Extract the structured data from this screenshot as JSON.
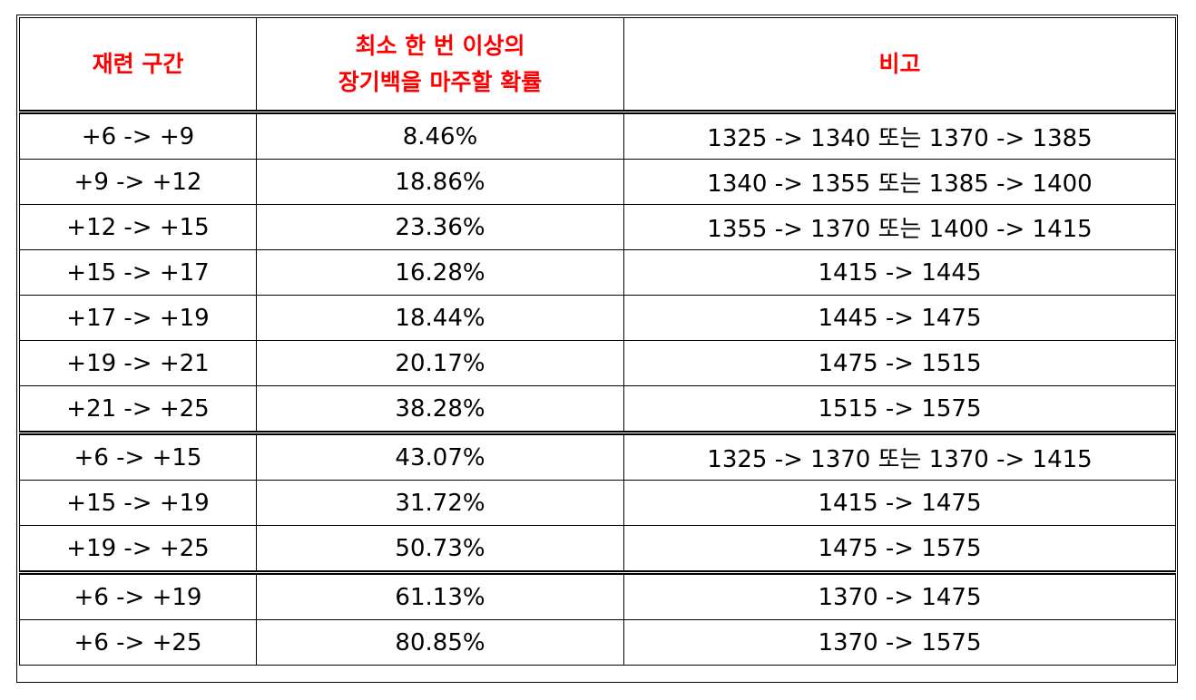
{
  "table": {
    "headers": [
      "재련 구간",
      "최소 한 번 이상의\n장기백을 마주할 확률",
      "비고"
    ],
    "header_line1": "최소 한 번 이상의",
    "header_line2": "장기백을 마주할 확률",
    "groups": [
      [
        [
          "+6 -> +9",
          "8.46%",
          "1325 -> 1340 또는 1370 -> 1385"
        ],
        [
          "+9 -> +12",
          "18.86%",
          "1340 -> 1355 또는 1385 -> 1400"
        ],
        [
          "+12 -> +15",
          "23.36%",
          "1355 -> 1370 또는 1400 -> 1415"
        ],
        [
          "+15 -> +17",
          "16.28%",
          "1415 -> 1445"
        ],
        [
          "+17 -> +19",
          "18.44%",
          "1445 -> 1475"
        ],
        [
          "+19 -> +21",
          "20.17%",
          "1475 -> 1515"
        ],
        [
          "+21 -> +25",
          "38.28%",
          "1515 -> 1575"
        ]
      ],
      [
        [
          "+6 -> +15",
          "43.07%",
          "1325 -> 1370 또는 1370 -> 1415"
        ],
        [
          "+15 -> +19",
          "31.72%",
          "1415 -> 1475"
        ],
        [
          "+19 -> +25",
          "50.73%",
          "1475 -> 1575"
        ]
      ],
      [
        [
          "+6 -> +19",
          "61.13%",
          "1370 -> 1475"
        ],
        [
          "+6 -> +25",
          "80.85%",
          "1370 -> 1575"
        ]
      ]
    ]
  }
}
